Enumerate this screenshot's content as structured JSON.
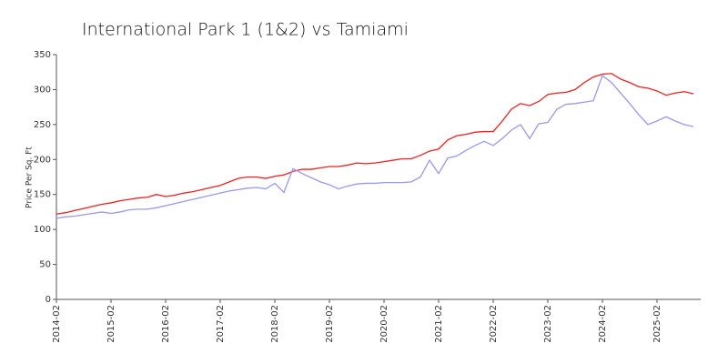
{
  "chart_data": {
    "type": "line",
    "title": "International Park 1 (1&2) vs Tamiami",
    "y_label": "Price Per Sq. Ft",
    "x": [
      "2014-02",
      "2014-04",
      "2014-06",
      "2014-08",
      "2014-10",
      "2014-12",
      "2015-02",
      "2015-04",
      "2015-06",
      "2015-08",
      "2015-10",
      "2015-12",
      "2016-02",
      "2016-04",
      "2016-06",
      "2016-08",
      "2016-10",
      "2016-12",
      "2017-02",
      "2017-04",
      "2017-06",
      "2017-08",
      "2017-10",
      "2017-12",
      "2018-02",
      "2018-04",
      "2018-06",
      "2018-08",
      "2018-10",
      "2018-12",
      "2019-02",
      "2019-04",
      "2019-06",
      "2019-08",
      "2019-10",
      "2019-12",
      "2020-02",
      "2020-04",
      "2020-06",
      "2020-08",
      "2020-10",
      "2020-12",
      "2021-02",
      "2021-04",
      "2021-06",
      "2021-08",
      "2021-10",
      "2021-12",
      "2022-02",
      "2022-04",
      "2022-06",
      "2022-08",
      "2022-10",
      "2022-12",
      "2023-02",
      "2023-04",
      "2023-06",
      "2023-08",
      "2023-10",
      "2023-12",
      "2024-02",
      "2024-04",
      "2024-06",
      "2024-08",
      "2024-10",
      "2024-12",
      "2025-02",
      "2025-04",
      "2025-06",
      "2025-08",
      "2025-10"
    ],
    "series": [
      {
        "color": "#ee2222",
        "values": [
          122,
          124,
          127,
          130,
          133,
          136,
          138,
          141,
          143,
          145,
          146,
          150,
          147,
          149,
          152,
          154,
          157,
          160,
          163,
          168,
          173,
          175,
          175,
          173,
          176,
          178,
          183,
          186,
          186,
          188,
          190,
          190,
          192,
          195,
          194,
          195,
          197,
          199,
          201,
          201,
          206,
          212,
          215,
          228,
          234,
          236,
          239,
          240,
          240,
          255,
          272,
          280,
          277,
          283,
          293,
          295,
          296,
          300,
          310,
          318,
          322,
          323,
          315,
          310,
          304,
          302,
          298,
          292,
          295,
          297,
          294
        ]
      },
      {
        "color": "#9999ee",
        "values": [
          116,
          118,
          119,
          121,
          123,
          125,
          123,
          125,
          128,
          129,
          129,
          131,
          134,
          137,
          140,
          143,
          146,
          149,
          152,
          155,
          157,
          159,
          160,
          158,
          166,
          153,
          187,
          180,
          174,
          168,
          164,
          158,
          162,
          165,
          166,
          166,
          167,
          167,
          167,
          168,
          175,
          199,
          180,
          202,
          205,
          213,
          220,
          226,
          220,
          230,
          242,
          250,
          230,
          251,
          253,
          272,
          279,
          280,
          282,
          284,
          320,
          310,
          295,
          280,
          264,
          250,
          255,
          261,
          255,
          250,
          247
        ]
      }
    ],
    "xticks": [
      "2014-02",
      "2015-02",
      "2016-02",
      "2017-02",
      "2018-02",
      "2019-02",
      "2020-02",
      "2021-02",
      "2022-02",
      "2023-02",
      "2024-02",
      "2025-02"
    ],
    "ylim": [
      0,
      350
    ],
    "yticks": [
      0,
      50,
      100,
      150,
      200,
      250,
      300,
      350
    ],
    "grid": false
  }
}
